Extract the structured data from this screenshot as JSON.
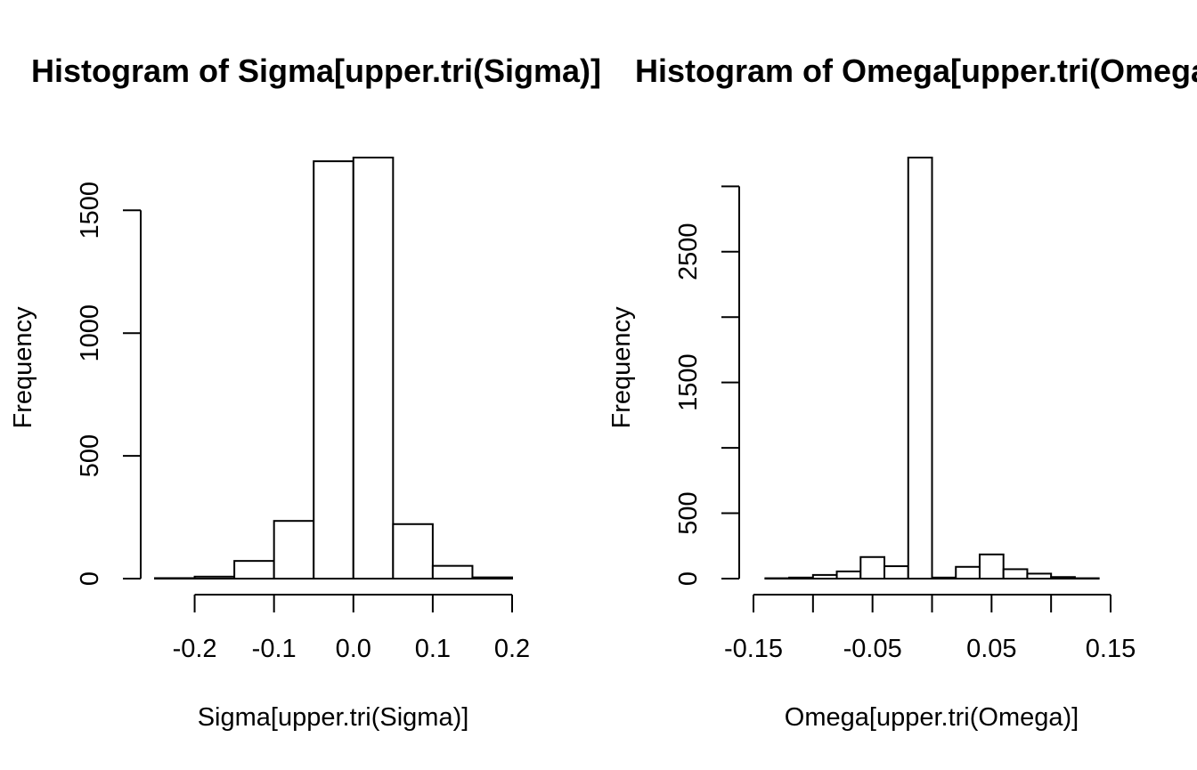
{
  "chart_data": [
    {
      "type": "bar",
      "subtype": "histogram",
      "title": "Histogram of Sigma[upper.tri(Sigma)]",
      "xlabel": "Sigma[upper.tri(Sigma)]",
      "ylabel": "Frequency",
      "bin_edges": [
        -0.25,
        -0.2,
        -0.15,
        -0.1,
        -0.05,
        0.0,
        0.05,
        0.1,
        0.15,
        0.2
      ],
      "values": [
        2,
        8,
        72,
        235,
        1700,
        1715,
        222,
        52,
        5
      ],
      "x_ticks": [
        -0.2,
        -0.1,
        0.0,
        0.1,
        0.2
      ],
      "x_tick_labels": [
        "-0.2",
        "-0.1",
        "0.0",
        "0.1",
        "0.2"
      ],
      "y_ticks": [
        0,
        500,
        1000,
        1500
      ],
      "y_tick_labels": [
        "0",
        "500",
        "1000",
        "1500"
      ],
      "xlim": [
        -0.25,
        0.2
      ],
      "ylim": [
        0,
        1715
      ],
      "grid": false,
      "legend": "none"
    },
    {
      "type": "bar",
      "subtype": "histogram",
      "title": "Histogram of Omega[upper.tri(Omega)]",
      "xlabel": "Omega[upper.tri(Omega)]",
      "ylabel": "Frequency",
      "bin_edges": [
        -0.14,
        -0.12,
        -0.1,
        -0.08,
        -0.06,
        -0.04,
        -0.02,
        0.0,
        0.02,
        0.04,
        0.06,
        0.08,
        0.1,
        0.12,
        0.14
      ],
      "values": [
        3,
        8,
        28,
        55,
        165,
        95,
        3220,
        8,
        90,
        185,
        72,
        38,
        12,
        3
      ],
      "x_ticks": [
        -0.15,
        -0.1,
        -0.05,
        0.0,
        0.05,
        0.1,
        0.15
      ],
      "x_tick_labels": [
        "-0.15",
        "",
        "-0.05",
        "",
        "0.05",
        "",
        "0.15"
      ],
      "y_ticks": [
        0,
        500,
        1000,
        1500,
        2000,
        2500,
        3000
      ],
      "y_tick_labels": [
        "0",
        "500",
        "",
        "1500",
        "",
        "2500",
        ""
      ],
      "xlim": [
        -0.15,
        0.15
      ],
      "ylim": [
        0,
        3220
      ],
      "grid": false,
      "legend": "none"
    }
  ]
}
